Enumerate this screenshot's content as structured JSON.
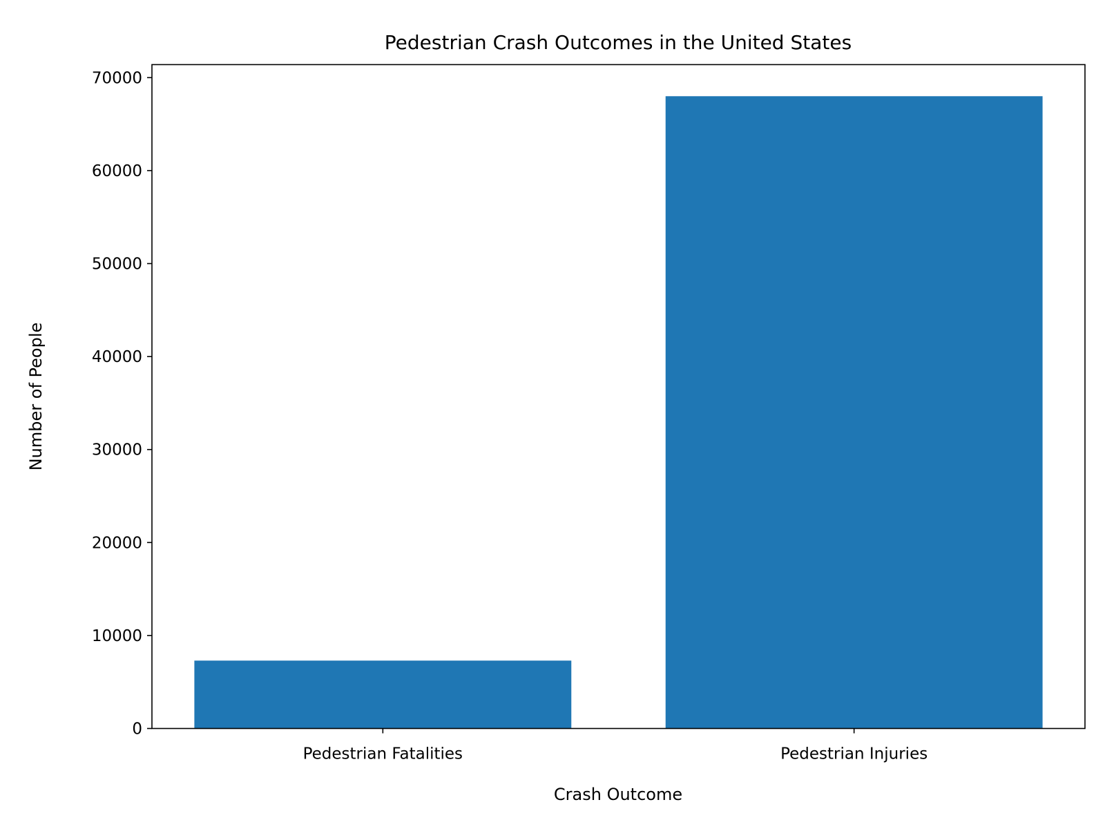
{
  "chart_data": {
    "type": "bar",
    "title": "Pedestrian Crash Outcomes in the United States",
    "xlabel": "Crash Outcome",
    "ylabel": "Number of People",
    "categories": [
      "Pedestrian Fatalities",
      "Pedestrian Injuries"
    ],
    "values": [
      7300,
      68000
    ],
    "ylim": [
      0,
      71400
    ],
    "yticks": [
      0,
      10000,
      20000,
      30000,
      40000,
      50000,
      60000,
      70000
    ],
    "grid": false,
    "bar_color": "#1f77b4"
  }
}
